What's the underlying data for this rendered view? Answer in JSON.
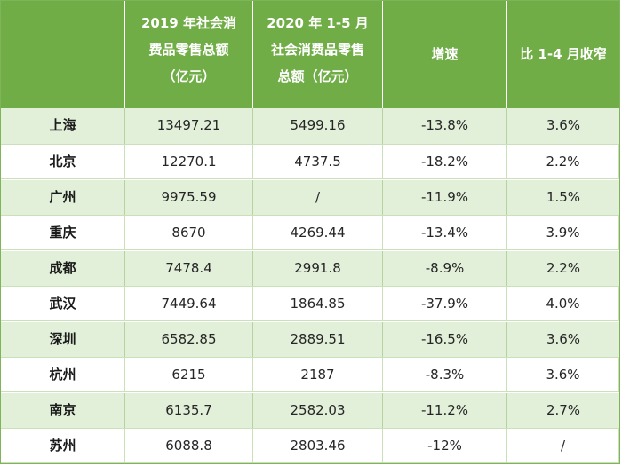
{
  "table": {
    "headers": [
      "2019 年社会消\n费品零售总额\n（亿元）",
      "2020 年 1-5 月\n社会消费品零售\n总额（亿元）",
      "增速",
      "比 1-4 月收窄"
    ],
    "rows": [
      {
        "city": "上海",
        "total_2019": "13497.21",
        "total_2020": "5499.16",
        "growth": "-13.8%",
        "narrow": "3.6%"
      },
      {
        "city": "北京",
        "total_2019": "12270.1",
        "total_2020": "4737.5",
        "growth": "-18.2%",
        "narrow": "2.2%"
      },
      {
        "city": "广州",
        "total_2019": "9975.59",
        "total_2020": "/",
        "growth": "-11.9%",
        "narrow": "1.5%"
      },
      {
        "city": "重庆",
        "total_2019": "8670",
        "total_2020": "4269.44",
        "growth": "-13.4%",
        "narrow": "3.9%"
      },
      {
        "city": "成都",
        "total_2019": "7478.4",
        "total_2020": "2991.8",
        "growth": "-8.9%",
        "narrow": "2.2%"
      },
      {
        "city": "武汉",
        "total_2019": "7449.64",
        "total_2020": "1864.85",
        "growth": "-37.9%",
        "narrow": "4.0%"
      },
      {
        "city": "深圳",
        "total_2019": "6582.85",
        "total_2020": "2889.51",
        "growth": "-16.5%",
        "narrow": "3.6%"
      },
      {
        "city": "杭州",
        "total_2019": "6215",
        "total_2020": "2187",
        "growth": "-8.3%",
        "narrow": "3.6%"
      },
      {
        "city": "南京",
        "total_2019": "6135.7",
        "total_2020": "2582.03",
        "growth": "-11.2%",
        "narrow": "2.7%"
      },
      {
        "city": "苏州",
        "total_2019": "6088.8",
        "total_2020": "2803.46",
        "growth": "-12%",
        "narrow": "/"
      }
    ]
  },
  "colors": {
    "header_bg": "#70ad47",
    "header_text": "#ffffff",
    "band_odd": "#e2efd9",
    "band_even": "#ffffff"
  }
}
